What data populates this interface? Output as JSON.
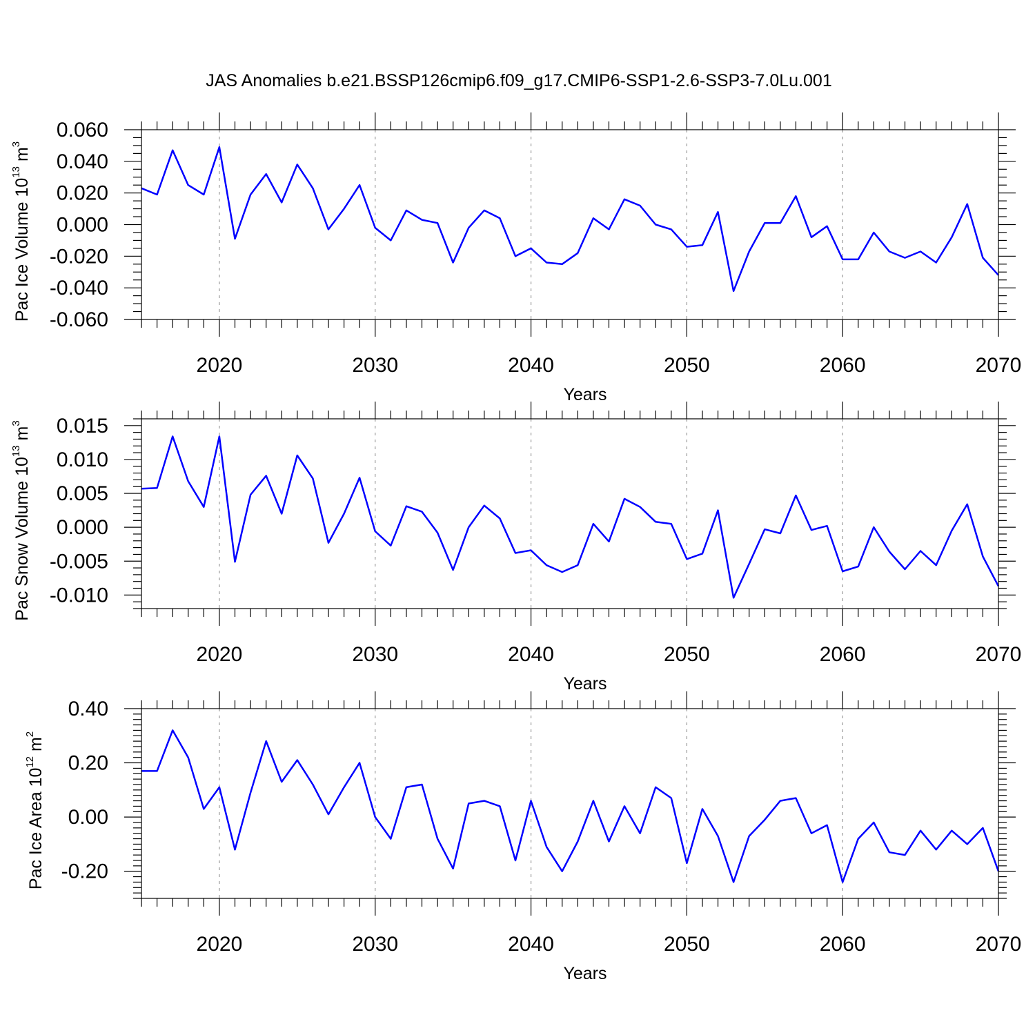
{
  "title": "JAS Anomalies b.e21.BSSP126cmip6.f09_g17.CMIP6-SSP1-2.6-SSP3-7.0Lu.001",
  "colors": {
    "line": "#0000ff",
    "grid": "#999999",
    "axis": "#000000"
  },
  "chart_data": [
    {
      "type": "line",
      "ylabel": {
        "text": "Pac Ice Volume 10",
        "exponent": "13",
        "unit": "m",
        "unit_exponent": "3"
      },
      "xlabel": "Years",
      "xlim": [
        2015,
        2070
      ],
      "ylim": [
        -0.06,
        0.06
      ],
      "x_ticks": [
        2020,
        2030,
        2040,
        2050,
        2060,
        2070
      ],
      "x_tick_labels": [
        "2020",
        "2030",
        "2040",
        "2050",
        "2060",
        "2070"
      ],
      "y_ticks": [
        0.06,
        0.04,
        0.02,
        0.0,
        -0.02,
        -0.04,
        -0.06
      ],
      "y_tick_labels": [
        "0.060",
        "0.040",
        "0.020",
        "0.000",
        "-0.020",
        "-0.040",
        "-0.060"
      ],
      "grid": "x dashed",
      "x": [
        2015,
        2016,
        2017,
        2018,
        2019,
        2020,
        2021,
        2022,
        2023,
        2024,
        2025,
        2026,
        2027,
        2028,
        2029,
        2030,
        2031,
        2032,
        2033,
        2034,
        2035,
        2036,
        2037,
        2038,
        2039,
        2040,
        2041,
        2042,
        2043,
        2044,
        2045,
        2046,
        2047,
        2048,
        2049,
        2050,
        2051,
        2052,
        2053,
        2054,
        2055,
        2056,
        2057,
        2058,
        2059,
        2060,
        2061,
        2062,
        2063,
        2064,
        2065,
        2066,
        2067,
        2068,
        2069,
        2070
      ],
      "values": [
        0.023,
        0.019,
        0.047,
        0.025,
        0.019,
        0.049,
        -0.009,
        0.019,
        0.032,
        0.014,
        0.038,
        0.023,
        -0.003,
        0.01,
        0.025,
        -0.002,
        -0.01,
        0.009,
        0.003,
        0.001,
        -0.024,
        -0.002,
        0.009,
        0.004,
        -0.02,
        -0.015,
        -0.024,
        -0.025,
        -0.018,
        0.004,
        -0.003,
        0.016,
        0.012,
        0.0,
        -0.003,
        -0.014,
        -0.013,
        0.008,
        -0.042,
        -0.017,
        0.001,
        0.001,
        0.018,
        -0.008,
        -0.001,
        -0.022,
        -0.022,
        -0.005,
        -0.017,
        -0.021,
        -0.017,
        -0.024,
        -0.008,
        0.013,
        -0.021,
        -0.032
      ]
    },
    {
      "type": "line",
      "ylabel": {
        "text": "Pac Snow Volume 10",
        "exponent": "13",
        "unit": "m",
        "unit_exponent": "3"
      },
      "xlabel": "Years",
      "xlim": [
        2015,
        2070
      ],
      "ylim": [
        -0.012,
        0.016
      ],
      "x_ticks": [
        2020,
        2030,
        2040,
        2050,
        2060,
        2070
      ],
      "x_tick_labels": [
        "2020",
        "2030",
        "2040",
        "2050",
        "2060",
        "2070"
      ],
      "y_ticks": [
        0.015,
        0.01,
        0.005,
        0.0,
        -0.005,
        -0.01
      ],
      "y_tick_labels": [
        "0.015",
        "0.010",
        "0.005",
        "0.000",
        "-0.005",
        "-0.010"
      ],
      "grid": "x dashed",
      "x": [
        2015,
        2016,
        2017,
        2018,
        2019,
        2020,
        2021,
        2022,
        2023,
        2024,
        2025,
        2026,
        2027,
        2028,
        2029,
        2030,
        2031,
        2032,
        2033,
        2034,
        2035,
        2036,
        2037,
        2038,
        2039,
        2040,
        2041,
        2042,
        2043,
        2044,
        2045,
        2046,
        2047,
        2048,
        2049,
        2050,
        2051,
        2052,
        2053,
        2054,
        2055,
        2056,
        2057,
        2058,
        2059,
        2060,
        2061,
        2062,
        2063,
        2064,
        2065,
        2066,
        2067,
        2068,
        2069,
        2070
      ],
      "values": [
        0.0057,
        0.0058,
        0.0134,
        0.0068,
        0.003,
        0.0134,
        -0.0051,
        0.0048,
        0.0076,
        0.002,
        0.0106,
        0.0072,
        -0.0023,
        0.002,
        0.0073,
        -0.0006,
        -0.0027,
        0.0031,
        0.0023,
        -0.0008,
        -0.0063,
        0.0,
        0.0032,
        0.0013,
        -0.0038,
        -0.0034,
        -0.0056,
        -0.0066,
        -0.0056,
        0.0005,
        -0.0021,
        0.0042,
        0.003,
        0.0008,
        0.0005,
        -0.0047,
        -0.0039,
        0.0025,
        -0.0104,
        -0.0054,
        -0.0003,
        -0.0009,
        0.0047,
        -0.0004,
        0.0002,
        -0.0065,
        -0.0058,
        0.0,
        -0.0036,
        -0.0062,
        -0.0035,
        -0.0056,
        -0.0005,
        0.0034,
        -0.0043,
        -0.0087
      ]
    },
    {
      "type": "line",
      "ylabel": {
        "text": "Pac Ice Area 10",
        "exponent": "12",
        "unit": "m",
        "unit_exponent": "2"
      },
      "xlabel": "Years",
      "xlim": [
        2015,
        2070
      ],
      "ylim": [
        -0.3,
        0.4
      ],
      "x_ticks": [
        2020,
        2030,
        2040,
        2050,
        2060,
        2070
      ],
      "x_tick_labels": [
        "2020",
        "2030",
        "2040",
        "2050",
        "2060",
        "2070"
      ],
      "y_ticks": [
        0.4,
        0.2,
        0.0,
        -0.2
      ],
      "y_tick_labels": [
        "0.40",
        "0.20",
        "0.00",
        "-0.20"
      ],
      "grid": "x dashed",
      "x": [
        2015,
        2016,
        2017,
        2018,
        2019,
        2020,
        2021,
        2022,
        2023,
        2024,
        2025,
        2026,
        2027,
        2028,
        2029,
        2030,
        2031,
        2032,
        2033,
        2034,
        2035,
        2036,
        2037,
        2038,
        2039,
        2040,
        2041,
        2042,
        2043,
        2044,
        2045,
        2046,
        2047,
        2048,
        2049,
        2050,
        2051,
        2052,
        2053,
        2054,
        2055,
        2056,
        2057,
        2058,
        2059,
        2060,
        2061,
        2062,
        2063,
        2064,
        2065,
        2066,
        2067,
        2068,
        2069,
        2070
      ],
      "values": [
        0.17,
        0.17,
        0.32,
        0.22,
        0.03,
        0.11,
        -0.12,
        0.09,
        0.28,
        0.13,
        0.21,
        0.12,
        0.01,
        0.11,
        0.2,
        0.0,
        -0.08,
        0.11,
        0.12,
        -0.08,
        -0.19,
        0.05,
        0.06,
        0.04,
        -0.16,
        0.06,
        -0.11,
        -0.2,
        -0.09,
        0.06,
        -0.09,
        0.04,
        -0.06,
        0.11,
        0.07,
        -0.17,
        0.03,
        -0.07,
        -0.24,
        -0.07,
        -0.01,
        0.06,
        0.07,
        -0.06,
        -0.03,
        -0.24,
        -0.08,
        -0.02,
        -0.13,
        -0.14,
        -0.05,
        -0.12,
        -0.05,
        -0.1,
        -0.04,
        -0.2
      ]
    }
  ]
}
